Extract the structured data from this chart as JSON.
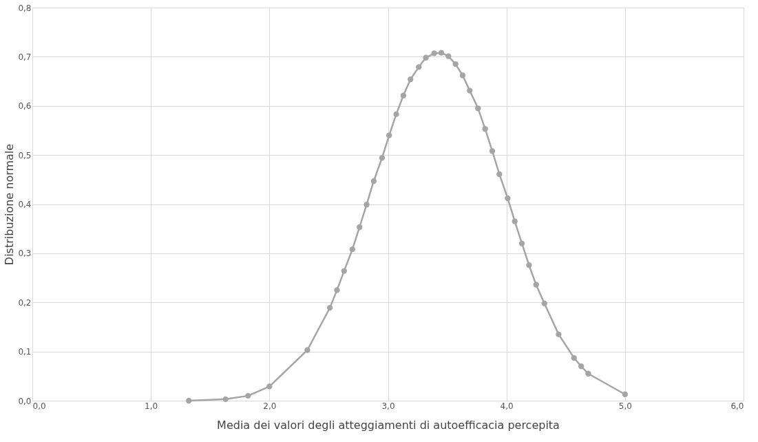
{
  "chart_data": {
    "type": "line",
    "xlabel": "Media dei valori degli atteggiamenti di autoefficacia percepita",
    "ylabel": "Distribuzione normale",
    "x": [
      1.32,
      1.63,
      1.82,
      2.0,
      2.32,
      2.51,
      2.57,
      2.63,
      2.7,
      2.76,
      2.82,
      2.88,
      2.95,
      3.01,
      3.07,
      3.13,
      3.19,
      3.26,
      3.32,
      3.39,
      3.45,
      3.51,
      3.57,
      3.63,
      3.69,
      3.76,
      3.82,
      3.88,
      3.94,
      4.01,
      4.07,
      4.13,
      4.19,
      4.25,
      4.32,
      4.44,
      4.57,
      4.63,
      4.69,
      5.0
    ],
    "series": [
      {
        "color": "#a5a5a5",
        "values": [
          0.0,
          0.003,
          0.01,
          0.029,
          0.103,
          0.189,
          0.225,
          0.264,
          0.308,
          0.353,
          0.399,
          0.447,
          0.494,
          0.54,
          0.583,
          0.621,
          0.654,
          0.679,
          0.698,
          0.707,
          0.708,
          0.701,
          0.685,
          0.662,
          0.631,
          0.595,
          0.553,
          0.508,
          0.461,
          0.412,
          0.365,
          0.32,
          0.276,
          0.236,
          0.198,
          0.135,
          0.087,
          0.07,
          0.055,
          0.013
        ]
      }
    ],
    "xlim": [
      0,
      6
    ],
    "ylim": [
      0,
      0.8
    ],
    "xticks": [
      {
        "value": 0,
        "label": "0,0"
      },
      {
        "value": 1,
        "label": "1,0"
      },
      {
        "value": 2,
        "label": "2,0"
      },
      {
        "value": 3,
        "label": "3,0"
      },
      {
        "value": 4,
        "label": "4,0"
      },
      {
        "value": 5,
        "label": "5,0"
      },
      {
        "value": 6,
        "label": "6,0"
      }
    ],
    "yticks": [
      {
        "value": 0,
        "label": "0,0"
      },
      {
        "value": 0.1,
        "label": "0,1"
      },
      {
        "value": 0.2,
        "label": "0,2"
      },
      {
        "value": 0.3,
        "label": "0,3"
      },
      {
        "value": 0.4,
        "label": "0,4"
      },
      {
        "value": 0.5,
        "label": "0,5"
      },
      {
        "value": 0.6,
        "label": "0,6"
      },
      {
        "value": 0.7,
        "label": "0,7"
      },
      {
        "value": 0.8,
        "label": "0,8"
      }
    ],
    "grid": true,
    "marker": "circle",
    "line_style": "solid"
  }
}
